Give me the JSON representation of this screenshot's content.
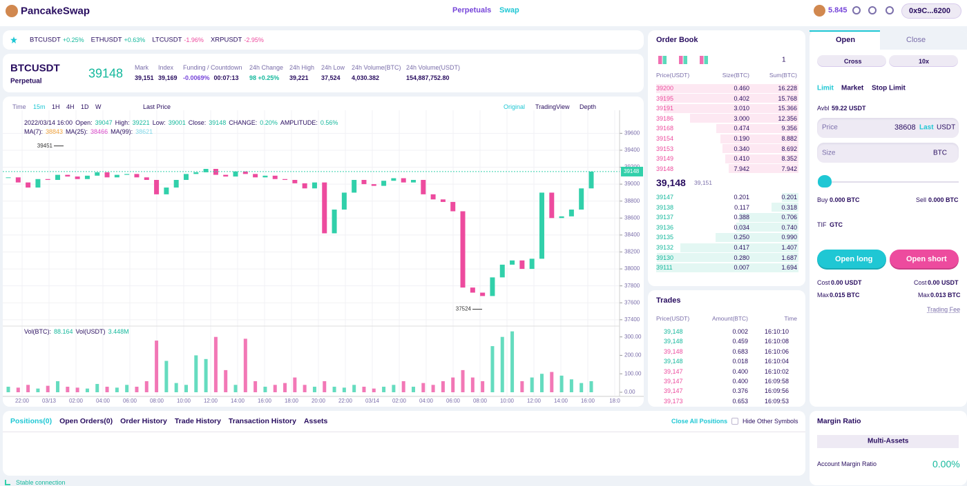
{
  "header": {
    "logo": "PancakeSwap",
    "nav": [
      "Perpetuals",
      "Swap"
    ],
    "balance": "5.845",
    "account": "0x9C...6200"
  },
  "tickers": [
    {
      "symbol": "BTCUSDT",
      "change": "+0.25%"
    },
    {
      "symbol": "ETHUSDT",
      "change": "+0.63%"
    },
    {
      "symbol": "LTCUSDT",
      "change": "-1.96%"
    },
    {
      "symbol": "XRPUSDT",
      "change": "-2.95%"
    }
  ],
  "market": {
    "symbol": "BTCUSDT",
    "kind": "Perpetual",
    "price": "39148",
    "stats": [
      {
        "label": "Mark",
        "value": "39,151"
      },
      {
        "label": "Index",
        "value": "39,169"
      },
      {
        "label": "Funding / Countdown",
        "value": "-0.0069%",
        "extra": "00:07:13"
      },
      {
        "label": "24h Change",
        "value": "98 +0.25%"
      },
      {
        "label": "24h High",
        "value": "39,221"
      },
      {
        "label": "24h Low",
        "value": "37,524"
      },
      {
        "label": "24h Volume(BTC)",
        "value": "4,030.382"
      },
      {
        "label": "24h Volume(USDT)",
        "value": "154,887,752.80"
      }
    ]
  },
  "toolbar": {
    "intervals": [
      "Time",
      "15m",
      "1H",
      "4H",
      "1D",
      "W"
    ],
    "price_type": "Last Price",
    "views": [
      "Original",
      "TradingView",
      "Depth"
    ]
  },
  "legend": {
    "date": "2022/03/14 16:00",
    "ohlc": [
      {
        "label": "Open:",
        "value": "39047"
      },
      {
        "label": "High:",
        "value": "39221"
      },
      {
        "label": "Low:",
        "value": "39001"
      },
      {
        "label": "Close:",
        "value": "39148"
      },
      {
        "label": "CHANGE:",
        "value": "0.20%"
      },
      {
        "label": "AMPLITUDE:",
        "value": "0.56%"
      }
    ],
    "ma": [
      {
        "label": "MA(7):",
        "value": "38843",
        "color": "#f0a33f"
      },
      {
        "label": "MA(25):",
        "value": "38466",
        "color": "#d946c8"
      },
      {
        "label": "MA(99):",
        "value": "38621",
        "color": "#7fd7e8"
      }
    ],
    "vol": [
      {
        "label": "Vol(BTC):",
        "value": "88.164"
      },
      {
        "label": "Vol(USDT)",
        "value": "3.448M"
      }
    ]
  },
  "chart_data": {
    "type": "candlestick",
    "up_color": "#31d0aa",
    "down_color": "#ed4b9e",
    "grid": true,
    "ylim": [
      37350,
      39790
    ],
    "yticks": [
      37400,
      37600,
      37800,
      38000,
      38200,
      38400,
      38600,
      38800,
      39000,
      39200,
      39400,
      39600
    ],
    "xticks": [
      "22:00",
      "03/13",
      "02:00",
      "04:00",
      "06:00",
      "08:00",
      "10:00",
      "12:00",
      "14:00",
      "16:00",
      "18:00",
      "20:00",
      "22:00",
      "03/14",
      "02:00",
      "04:00",
      "06:00",
      "08:00",
      "10:00",
      "12:00",
      "14:00",
      "16:00",
      "18:0"
    ],
    "closes": [
      39080,
      39020,
      38960,
      39060,
      39050,
      39110,
      39090,
      39060,
      39100,
      39140,
      39080,
      39110,
      39120,
      39080,
      39050,
      38880,
      38960,
      39050,
      39120,
      39140,
      39180,
      39110,
      39090,
      39150,
      39120,
      39080,
      39100,
      39060,
      39050,
      39010,
      38950,
      39020,
      38420,
      38700,
      38900,
      39050,
      39000,
      38980,
      39040,
      39070,
      39020,
      39050,
      38880,
      38820,
      38790,
      38680,
      37780,
      37720,
      37680,
      37900,
      38050,
      38100,
      38000,
      38120,
      38900,
      38600,
      38620,
      38700,
      38950,
      39148
    ],
    "volumes": [
      30,
      25,
      40,
      20,
      35,
      60,
      30,
      25,
      20,
      45,
      30,
      25,
      40,
      30,
      60,
      280,
      170,
      50,
      40,
      200,
      180,
      300,
      120,
      40,
      290,
      60,
      30,
      40,
      50,
      80,
      40,
      30,
      60,
      30,
      25,
      40,
      30,
      20,
      30,
      40,
      60,
      30,
      50,
      40,
      60,
      80,
      120,
      80,
      60,
      250,
      300,
      330,
      60,
      80,
      100,
      110,
      90,
      70,
      50,
      60
    ],
    "vol_ylim": [
      0,
      340
    ],
    "vol_yticks": [
      {
        "value": 0,
        "label": "0.00"
      },
      {
        "value": 100,
        "label": "100.00"
      },
      {
        "value": 200,
        "label": "200.00"
      },
      {
        "value": 300,
        "label": "300.00"
      }
    ],
    "last_price": 39148,
    "annotations": [
      39451,
      37524
    ]
  },
  "orderbook": {
    "title": "Order Book",
    "depth": "1",
    "headers": [
      "Price(USDT)",
      "Size(BTC)",
      "Sum(BTC)"
    ],
    "asks": [
      [
        "39200",
        "0.460",
        "16.228"
      ],
      [
        "39195",
        "0.402",
        "15.768"
      ],
      [
        "39191",
        "3.010",
        "15.366"
      ],
      [
        "39186",
        "3.000",
        "12.356"
      ],
      [
        "39168",
        "0.474",
        "9.356"
      ],
      [
        "39154",
        "0.190",
        "8.882"
      ],
      [
        "39153",
        "0.340",
        "8.692"
      ],
      [
        "39149",
        "0.410",
        "8.352"
      ],
      [
        "39148",
        "7.942",
        "7.942"
      ]
    ],
    "mid": "39,148",
    "mark": "39,151",
    "bids": [
      [
        "39147",
        "0.201",
        "0.201"
      ],
      [
        "39138",
        "0.117",
        "0.318"
      ],
      [
        "39137",
        "0.388",
        "0.706"
      ],
      [
        "39136",
        "0.034",
        "0.740"
      ],
      [
        "39135",
        "0.250",
        "0.990"
      ],
      [
        "39132",
        "0.417",
        "1.407"
      ],
      [
        "39130",
        "0.280",
        "1.687"
      ],
      [
        "39111",
        "0.007",
        "1.694"
      ]
    ]
  },
  "trades": {
    "title": "Trades",
    "headers": [
      "Price(USDT)",
      "Amount(BTC)",
      "Time"
    ],
    "rows": [
      {
        "cells": [
          "39,148",
          "0.002",
          "16:10:10"
        ],
        "color": "#14b89c"
      },
      {
        "cells": [
          "39,148",
          "0.459",
          "16:10:08"
        ],
        "color": "#14b89c"
      },
      {
        "cells": [
          "39,148",
          "0.683",
          "16:10:06"
        ],
        "color": "#ed4b9e"
      },
      {
        "cells": [
          "39,148",
          "0.018",
          "16:10:04"
        ],
        "color": "#14b89c"
      },
      {
        "cells": [
          "39,147",
          "0.400",
          "16:10:02"
        ],
        "color": "#ed4b9e"
      },
      {
        "cells": [
          "39,147",
          "0.400",
          "16:09:58"
        ],
        "color": "#ed4b9e"
      },
      {
        "cells": [
          "39,147",
          "0.376",
          "16:09:56"
        ],
        "color": "#ed4b9e"
      },
      {
        "cells": [
          "39,173",
          "0.653",
          "16:09:53"
        ],
        "color": "#ed4b9e"
      }
    ]
  },
  "order_form": {
    "tabs": [
      "Open",
      "Close"
    ],
    "margin": [
      "Cross",
      "10x"
    ],
    "types": [
      "Limit",
      "Market",
      "Stop Limit"
    ],
    "avbl_label": "Avbl",
    "avbl": "59.22 USDT",
    "price_label": "Price",
    "price": "38608",
    "last": "Last",
    "price_unit": "USDT",
    "size_label": "Size",
    "size_unit": "BTC",
    "buy_label": "Buy",
    "buy": "0.000 BTC",
    "sell_label": "Sell",
    "sell": "0.000 BTC",
    "tif_label": "TIF",
    "tif": "GTC",
    "long": "Open long",
    "short": "Open short",
    "cost_label": "Cost",
    "cost_long": "0.00 USDT",
    "cost_short": "0.00 USDT",
    "max_label": "Max",
    "max_long": "0.015 BTC",
    "max_short": "0.013 BTC",
    "fee": "Trading Fee"
  },
  "positions": {
    "tabs": [
      "Positions(0)",
      "Open Orders(0)",
      "Order History",
      "Trade History",
      "Transaction History",
      "Assets"
    ],
    "close_all": "Close All Positions",
    "hide": "Hide Other Symbols"
  },
  "margin": {
    "title": "Margin Ratio",
    "mode": "Multi-Assets",
    "ratio_label": "Account Margin Ratio",
    "ratio": "0.00%"
  },
  "status": "Stable connection"
}
